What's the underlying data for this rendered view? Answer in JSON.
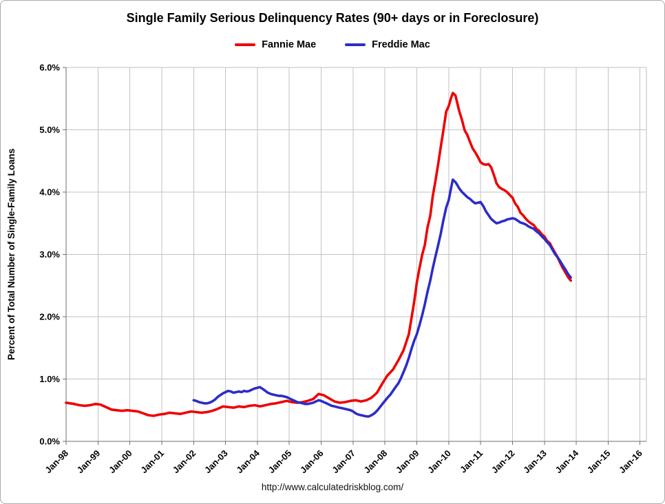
{
  "chart_data": {
    "type": "line",
    "title": "Single Family Serious Delinquency Rates (90+ days or in Foreclosure)",
    "xlabel": "",
    "ylabel": "Percent of Total Number of Single-Family Loans",
    "source": "http://www.calculatedriskblog.com/",
    "grid": true,
    "legend_position": "top",
    "background": "#ffffff",
    "xlim": [
      1998,
      2016.2
    ],
    "ylim": [
      0,
      6
    ],
    "x_tick_values": [
      1998,
      1999,
      2000,
      2001,
      2002,
      2003,
      2004,
      2005,
      2006,
      2007,
      2008,
      2009,
      2010,
      2011,
      2012,
      2013,
      2014,
      2015,
      2016
    ],
    "x_tick_labels": [
      "Jan-98",
      "Jan-99",
      "Jan-00",
      "Jan-01",
      "Jan-02",
      "Jan-03",
      "Jan-04",
      "Jan-05",
      "Jan-06",
      "Jan-07",
      "Jan-08",
      "Jan-09",
      "Jan-10",
      "Jan-11",
      "Jan-12",
      "Jan-13",
      "Jan-14",
      "Jan-15",
      "Jan-16"
    ],
    "y_tick_values": [
      0,
      1,
      2,
      3,
      4,
      5,
      6
    ],
    "y_tick_labels": [
      "0.0%",
      "1.0%",
      "2.0%",
      "3.0%",
      "4.0%",
      "5.0%",
      "6.0%"
    ],
    "series": [
      {
        "name": "Fannie Mae",
        "color": "#ee0000",
        "points": [
          [
            1998.0,
            0.62
          ],
          [
            1998.25,
            0.6
          ],
          [
            1998.42,
            0.58
          ],
          [
            1998.58,
            0.57
          ],
          [
            1998.75,
            0.58
          ],
          [
            1998.92,
            0.6
          ],
          [
            1999.08,
            0.59
          ],
          [
            1999.25,
            0.55
          ],
          [
            1999.42,
            0.51
          ],
          [
            1999.58,
            0.5
          ],
          [
            1999.75,
            0.49
          ],
          [
            1999.92,
            0.5
          ],
          [
            2000.08,
            0.49
          ],
          [
            2000.25,
            0.48
          ],
          [
            2000.42,
            0.45
          ],
          [
            2000.58,
            0.42
          ],
          [
            2000.75,
            0.41
          ],
          [
            2000.92,
            0.43
          ],
          [
            2001.08,
            0.44
          ],
          [
            2001.25,
            0.46
          ],
          [
            2001.42,
            0.45
          ],
          [
            2001.58,
            0.44
          ],
          [
            2001.75,
            0.46
          ],
          [
            2001.92,
            0.48
          ],
          [
            2002.08,
            0.47
          ],
          [
            2002.25,
            0.46
          ],
          [
            2002.42,
            0.47
          ],
          [
            2002.58,
            0.49
          ],
          [
            2002.75,
            0.52
          ],
          [
            2002.92,
            0.56
          ],
          [
            2003.08,
            0.55
          ],
          [
            2003.25,
            0.54
          ],
          [
            2003.42,
            0.56
          ],
          [
            2003.58,
            0.55
          ],
          [
            2003.75,
            0.57
          ],
          [
            2003.92,
            0.58
          ],
          [
            2004.08,
            0.56
          ],
          [
            2004.25,
            0.58
          ],
          [
            2004.42,
            0.6
          ],
          [
            2004.58,
            0.61
          ],
          [
            2004.75,
            0.63
          ],
          [
            2004.92,
            0.65
          ],
          [
            2005.08,
            0.63
          ],
          [
            2005.25,
            0.62
          ],
          [
            2005.42,
            0.63
          ],
          [
            2005.58,
            0.65
          ],
          [
            2005.75,
            0.68
          ],
          [
            2005.92,
            0.76
          ],
          [
            2006.08,
            0.74
          ],
          [
            2006.25,
            0.69
          ],
          [
            2006.42,
            0.64
          ],
          [
            2006.58,
            0.62
          ],
          [
            2006.75,
            0.63
          ],
          [
            2006.92,
            0.65
          ],
          [
            2007.08,
            0.66
          ],
          [
            2007.25,
            0.64
          ],
          [
            2007.42,
            0.66
          ],
          [
            2007.58,
            0.7
          ],
          [
            2007.75,
            0.78
          ],
          [
            2007.92,
            0.93
          ],
          [
            2008.08,
            1.06
          ],
          [
            2008.25,
            1.15
          ],
          [
            2008.42,
            1.3
          ],
          [
            2008.58,
            1.46
          ],
          [
            2008.75,
            1.72
          ],
          [
            2008.92,
            2.25
          ],
          [
            2009.0,
            2.55
          ],
          [
            2009.08,
            2.77
          ],
          [
            2009.17,
            3.0
          ],
          [
            2009.25,
            3.15
          ],
          [
            2009.33,
            3.42
          ],
          [
            2009.42,
            3.62
          ],
          [
            2009.5,
            3.94
          ],
          [
            2009.58,
            4.17
          ],
          [
            2009.67,
            4.45
          ],
          [
            2009.75,
            4.72
          ],
          [
            2009.83,
            4.98
          ],
          [
            2009.92,
            5.29
          ],
          [
            2010.0,
            5.38
          ],
          [
            2010.08,
            5.52
          ],
          [
            2010.13,
            5.59
          ],
          [
            2010.21,
            5.55
          ],
          [
            2010.25,
            5.47
          ],
          [
            2010.33,
            5.3
          ],
          [
            2010.42,
            5.15
          ],
          [
            2010.5,
            4.99
          ],
          [
            2010.58,
            4.92
          ],
          [
            2010.67,
            4.8
          ],
          [
            2010.75,
            4.7
          ],
          [
            2010.83,
            4.64
          ],
          [
            2010.92,
            4.56
          ],
          [
            2011.0,
            4.48
          ],
          [
            2011.08,
            4.45
          ],
          [
            2011.17,
            4.44
          ],
          [
            2011.25,
            4.45
          ],
          [
            2011.33,
            4.4
          ],
          [
            2011.42,
            4.27
          ],
          [
            2011.5,
            4.14
          ],
          [
            2011.58,
            4.08
          ],
          [
            2011.67,
            4.05
          ],
          [
            2011.75,
            4.03
          ],
          [
            2011.83,
            4.0
          ],
          [
            2011.92,
            3.95
          ],
          [
            2012.0,
            3.91
          ],
          [
            2012.08,
            3.82
          ],
          [
            2012.17,
            3.76
          ],
          [
            2012.25,
            3.67
          ],
          [
            2012.33,
            3.63
          ],
          [
            2012.42,
            3.57
          ],
          [
            2012.5,
            3.53
          ],
          [
            2012.58,
            3.5
          ],
          [
            2012.67,
            3.47
          ],
          [
            2012.75,
            3.41
          ],
          [
            2012.83,
            3.38
          ],
          [
            2012.92,
            3.32
          ],
          [
            2013.0,
            3.29
          ],
          [
            2013.08,
            3.22
          ],
          [
            2013.17,
            3.18
          ],
          [
            2013.25,
            3.1
          ],
          [
            2013.33,
            3.03
          ],
          [
            2013.42,
            2.95
          ],
          [
            2013.5,
            2.86
          ],
          [
            2013.58,
            2.78
          ],
          [
            2013.67,
            2.7
          ],
          [
            2013.75,
            2.63
          ],
          [
            2013.83,
            2.58
          ]
        ]
      },
      {
        "name": "Freddie Mac",
        "color": "#2c2cc8",
        "points": [
          [
            2002.0,
            0.66
          ],
          [
            2002.08,
            0.65
          ],
          [
            2002.17,
            0.63
          ],
          [
            2002.25,
            0.62
          ],
          [
            2002.33,
            0.61
          ],
          [
            2002.42,
            0.61
          ],
          [
            2002.5,
            0.62
          ],
          [
            2002.58,
            0.64
          ],
          [
            2002.67,
            0.67
          ],
          [
            2002.75,
            0.71
          ],
          [
            2002.83,
            0.74
          ],
          [
            2002.92,
            0.77
          ],
          [
            2003.0,
            0.79
          ],
          [
            2003.08,
            0.81
          ],
          [
            2003.17,
            0.8
          ],
          [
            2003.25,
            0.78
          ],
          [
            2003.33,
            0.79
          ],
          [
            2003.42,
            0.8
          ],
          [
            2003.5,
            0.79
          ],
          [
            2003.58,
            0.81
          ],
          [
            2003.67,
            0.8
          ],
          [
            2003.75,
            0.81
          ],
          [
            2003.83,
            0.83
          ],
          [
            2003.92,
            0.85
          ],
          [
            2004.0,
            0.86
          ],
          [
            2004.08,
            0.87
          ],
          [
            2004.17,
            0.84
          ],
          [
            2004.25,
            0.81
          ],
          [
            2004.33,
            0.78
          ],
          [
            2004.42,
            0.76
          ],
          [
            2004.5,
            0.75
          ],
          [
            2004.58,
            0.74
          ],
          [
            2004.67,
            0.73
          ],
          [
            2004.75,
            0.73
          ],
          [
            2004.83,
            0.72
          ],
          [
            2004.92,
            0.71
          ],
          [
            2005.0,
            0.69
          ],
          [
            2005.08,
            0.67
          ],
          [
            2005.17,
            0.65
          ],
          [
            2005.25,
            0.63
          ],
          [
            2005.33,
            0.62
          ],
          [
            2005.42,
            0.61
          ],
          [
            2005.5,
            0.6
          ],
          [
            2005.58,
            0.6
          ],
          [
            2005.67,
            0.61
          ],
          [
            2005.75,
            0.62
          ],
          [
            2005.83,
            0.64
          ],
          [
            2005.92,
            0.66
          ],
          [
            2006.0,
            0.65
          ],
          [
            2006.08,
            0.63
          ],
          [
            2006.17,
            0.61
          ],
          [
            2006.25,
            0.59
          ],
          [
            2006.33,
            0.57
          ],
          [
            2006.42,
            0.56
          ],
          [
            2006.5,
            0.55
          ],
          [
            2006.58,
            0.54
          ],
          [
            2006.67,
            0.53
          ],
          [
            2006.75,
            0.52
          ],
          [
            2006.83,
            0.51
          ],
          [
            2006.92,
            0.5
          ],
          [
            2007.0,
            0.48
          ],
          [
            2007.08,
            0.45
          ],
          [
            2007.17,
            0.43
          ],
          [
            2007.25,
            0.42
          ],
          [
            2007.33,
            0.41
          ],
          [
            2007.42,
            0.4
          ],
          [
            2007.5,
            0.4
          ],
          [
            2007.58,
            0.42
          ],
          [
            2007.67,
            0.45
          ],
          [
            2007.75,
            0.49
          ],
          [
            2007.83,
            0.54
          ],
          [
            2007.92,
            0.6
          ],
          [
            2008.0,
            0.65
          ],
          [
            2008.08,
            0.7
          ],
          [
            2008.17,
            0.75
          ],
          [
            2008.25,
            0.81
          ],
          [
            2008.33,
            0.87
          ],
          [
            2008.42,
            0.93
          ],
          [
            2008.5,
            1.01
          ],
          [
            2008.58,
            1.11
          ],
          [
            2008.67,
            1.22
          ],
          [
            2008.75,
            1.34
          ],
          [
            2008.83,
            1.48
          ],
          [
            2008.92,
            1.62
          ],
          [
            2009.0,
            1.72
          ],
          [
            2009.08,
            1.86
          ],
          [
            2009.17,
            2.03
          ],
          [
            2009.25,
            2.2
          ],
          [
            2009.33,
            2.39
          ],
          [
            2009.42,
            2.58
          ],
          [
            2009.5,
            2.78
          ],
          [
            2009.58,
            2.96
          ],
          [
            2009.67,
            3.15
          ],
          [
            2009.75,
            3.33
          ],
          [
            2009.83,
            3.54
          ],
          [
            2009.92,
            3.75
          ],
          [
            2010.0,
            3.87
          ],
          [
            2010.08,
            4.08
          ],
          [
            2010.13,
            4.2
          ],
          [
            2010.21,
            4.16
          ],
          [
            2010.25,
            4.13
          ],
          [
            2010.33,
            4.06
          ],
          [
            2010.42,
            4.0
          ],
          [
            2010.5,
            3.96
          ],
          [
            2010.58,
            3.92
          ],
          [
            2010.67,
            3.89
          ],
          [
            2010.75,
            3.85
          ],
          [
            2010.83,
            3.82
          ],
          [
            2010.92,
            3.83
          ],
          [
            2011.0,
            3.84
          ],
          [
            2011.08,
            3.78
          ],
          [
            2011.17,
            3.69
          ],
          [
            2011.25,
            3.63
          ],
          [
            2011.33,
            3.57
          ],
          [
            2011.42,
            3.53
          ],
          [
            2011.5,
            3.5
          ],
          [
            2011.58,
            3.51
          ],
          [
            2011.67,
            3.53
          ],
          [
            2011.75,
            3.54
          ],
          [
            2011.83,
            3.56
          ],
          [
            2011.92,
            3.57
          ],
          [
            2012.0,
            3.58
          ],
          [
            2012.08,
            3.57
          ],
          [
            2012.17,
            3.54
          ],
          [
            2012.25,
            3.51
          ],
          [
            2012.33,
            3.5
          ],
          [
            2012.42,
            3.48
          ],
          [
            2012.5,
            3.45
          ],
          [
            2012.58,
            3.43
          ],
          [
            2012.67,
            3.41
          ],
          [
            2012.75,
            3.37
          ],
          [
            2012.83,
            3.34
          ],
          [
            2012.92,
            3.29
          ],
          [
            2013.0,
            3.25
          ],
          [
            2013.08,
            3.2
          ],
          [
            2013.17,
            3.15
          ],
          [
            2013.25,
            3.08
          ],
          [
            2013.33,
            3.01
          ],
          [
            2013.42,
            2.95
          ],
          [
            2013.5,
            2.89
          ],
          [
            2013.58,
            2.82
          ],
          [
            2013.67,
            2.75
          ],
          [
            2013.75,
            2.68
          ],
          [
            2013.83,
            2.63
          ]
        ]
      }
    ]
  }
}
